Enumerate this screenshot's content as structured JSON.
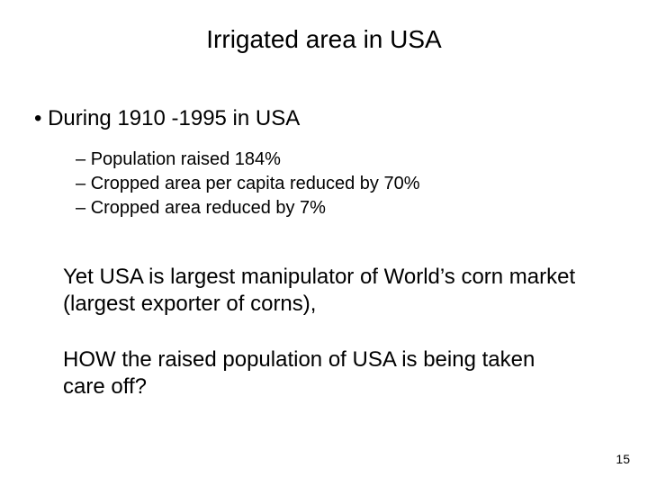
{
  "slide": {
    "title": "Irrigated area in USA",
    "bullet_main": "During 1910 -1995 in USA",
    "sub_bullets": [
      "Population raised 184%",
      "Cropped area per capita reduced by 70%",
      "Cropped area reduced by 7%"
    ],
    "para1": "Yet USA is largest manipulator of World’s corn market (largest exporter of corns),",
    "para2": "HOW the raised population of USA is being taken care off?",
    "page_number": "15"
  },
  "style": {
    "background_color": "#ffffff",
    "text_color": "#000000",
    "title_fontsize": 28,
    "body_fontsize": 24,
    "sub_fontsize": 20,
    "pagenum_fontsize": 14,
    "font_family": "Arial"
  }
}
